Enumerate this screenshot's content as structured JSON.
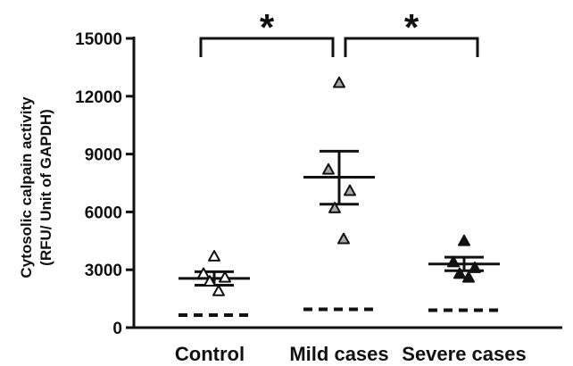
{
  "chart_data": {
    "type": "scatter",
    "ylabel_lines": [
      "Cytosolic calpain activity",
      "(RFU/ Unit of GAPDH)"
    ],
    "ylim": [
      0,
      15000
    ],
    "yticks": [
      "0",
      "3000",
      "6000",
      "9000",
      "12000",
      "15000"
    ],
    "ytick_values": [
      0,
      3000,
      6000,
      9000,
      12000,
      15000
    ],
    "categories": [
      "Control",
      "Mild cases",
      "Severe cases"
    ],
    "groups": [
      {
        "category": "Control",
        "marker": "open-triangle",
        "points": [
          3700,
          2800,
          2600,
          2400,
          1900
        ],
        "mean": 2550,
        "sem_upper": 2900,
        "sem_lower": 2200,
        "baseline": 650
      },
      {
        "category": "Mild cases",
        "marker": "grey-triangle",
        "points": [
          12700,
          8200,
          7100,
          6200,
          4600
        ],
        "mean": 7800,
        "sem_upper": 9150,
        "sem_lower": 6400,
        "baseline": 950
      },
      {
        "category": "Severe cases",
        "marker": "filled-triangle",
        "points": [
          4500,
          3400,
          3100,
          2800,
          2600
        ],
        "mean": 3300,
        "sem_upper": 3650,
        "sem_lower": 2950,
        "baseline": 900
      }
    ],
    "significance": [
      {
        "from": "Control",
        "to": "Mild cases",
        "label": "*"
      },
      {
        "from": "Mild cases",
        "to": "Severe cases",
        "label": "*"
      }
    ],
    "colors": {
      "axis": "#111111",
      "open_fill": "#ffffff",
      "grey_fill": "#a8a8a8",
      "dark_fill": "#111111"
    }
  }
}
